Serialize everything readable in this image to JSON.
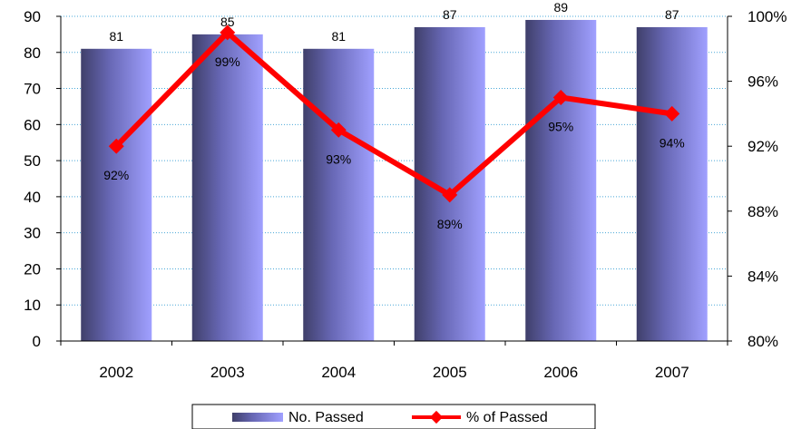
{
  "chart_data": {
    "type": "bar",
    "categories": [
      "2002",
      "2003",
      "2004",
      "2005",
      "2006",
      "2007"
    ],
    "series": [
      {
        "name": "No. Passed",
        "type": "bar",
        "axis": "left",
        "values": [
          81,
          85,
          81,
          87,
          89,
          87
        ],
        "labels": [
          "81",
          "85",
          "81",
          "87",
          "89",
          "87"
        ],
        "color": "#8f8ff0"
      },
      {
        "name": "% of Passed",
        "type": "line",
        "axis": "right",
        "values": [
          92,
          99,
          93,
          89,
          95,
          94
        ],
        "labels": [
          "92%",
          "99%",
          "93%",
          "89%",
          "95%",
          "94%"
        ],
        "color": "#ff0000"
      }
    ],
    "y_left": {
      "min": 0,
      "max": 90,
      "ticks": [
        {
          "value": 0,
          "label": "0"
        },
        {
          "value": 10,
          "label": "10"
        },
        {
          "value": 20,
          "label": "20"
        },
        {
          "value": 30,
          "label": "30"
        },
        {
          "value": 40,
          "label": "40"
        },
        {
          "value": 50,
          "label": "50"
        },
        {
          "value": 60,
          "label": "60"
        },
        {
          "value": 70,
          "label": "70"
        },
        {
          "value": 80,
          "label": "80"
        },
        {
          "value": 90,
          "label": "90"
        }
      ]
    },
    "y_right": {
      "min": 80,
      "max": 100,
      "ticks": [
        {
          "value": 80,
          "label": "80%"
        },
        {
          "value": 84,
          "label": "84%"
        },
        {
          "value": 88,
          "label": "88%"
        },
        {
          "value": 92,
          "label": "92%"
        },
        {
          "value": 96,
          "label": "96%"
        },
        {
          "value": 100,
          "label": "100%"
        }
      ]
    },
    "grid": true,
    "legend_position": "bottom",
    "title": "",
    "xlabel": "",
    "ylabel": ""
  }
}
